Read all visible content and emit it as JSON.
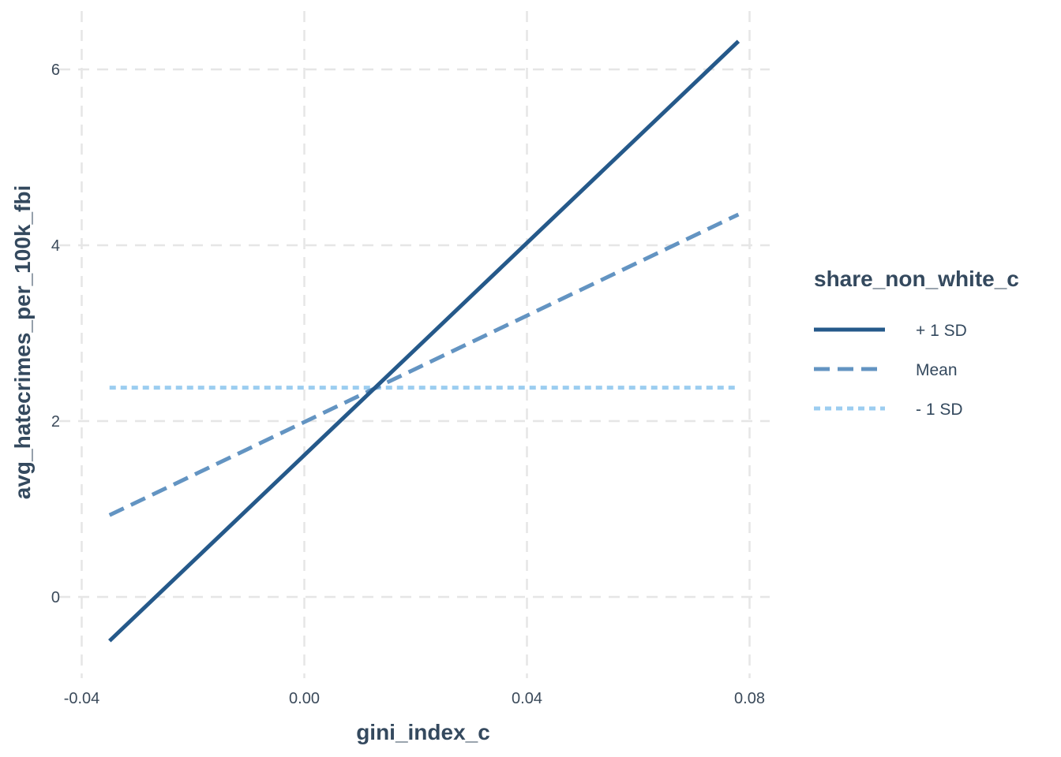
{
  "chart_data": {
    "type": "line",
    "title": "",
    "xlabel": "gini_index_c",
    "ylabel": "avg_hatecrimes_per_100k_fbi",
    "xlim": [
      -0.04,
      0.08
    ],
    "ylim": [
      -0.6,
      6.6
    ],
    "x_ticks": [
      -0.04,
      0.0,
      0.04,
      0.08
    ],
    "x_tick_labels": [
      "-0.04",
      "0.00",
      "0.04",
      "0.08"
    ],
    "y_ticks": [
      0,
      2,
      4,
      6
    ],
    "y_tick_labels": [
      "0",
      "2",
      "4",
      "6"
    ],
    "grid": true,
    "legend": {
      "title": "share_non_white_c",
      "position": "right",
      "entries": [
        "+ 1 SD",
        "Mean",
        "- 1 SD"
      ]
    },
    "series": [
      {
        "name": "+ 1 SD",
        "color": "#25598a",
        "dash": "solid",
        "x": [
          -0.035,
          0.078
        ],
        "y": [
          -0.5,
          6.32
        ]
      },
      {
        "name": "Mean",
        "color": "#6394c2",
        "dash": "dashed",
        "x": [
          -0.035,
          0.078
        ],
        "y": [
          0.93,
          4.35
        ]
      },
      {
        "name": "- 1 SD",
        "color": "#9ccdf0",
        "dash": "dotted",
        "x": [
          -0.035,
          0.078
        ],
        "y": [
          2.38,
          2.38
        ]
      }
    ]
  }
}
